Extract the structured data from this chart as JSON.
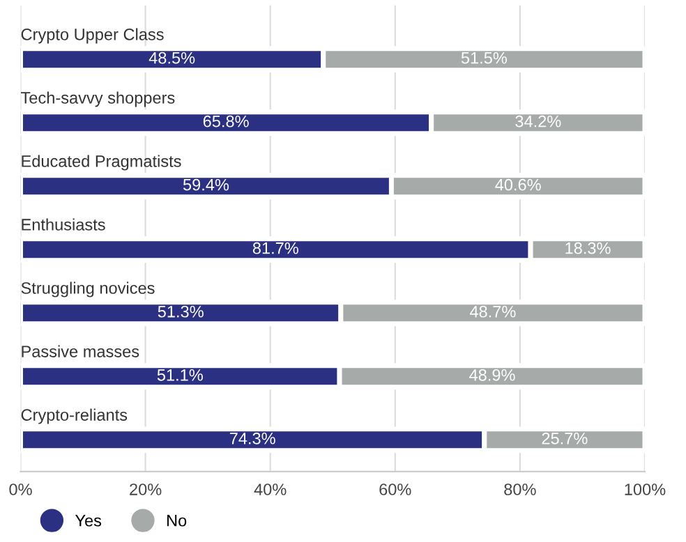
{
  "chart_data": {
    "type": "bar",
    "orientation": "horizontal",
    "stacked": true,
    "categories": [
      "Crypto Upper Class",
      "Tech-savvy shoppers",
      "Educated Pragmatists",
      "Enthusiasts",
      "Struggling novices",
      "Passive masses",
      "Crypto-reliants"
    ],
    "series": [
      {
        "name": "Yes",
        "color": "#2b3082",
        "values": [
          48.5,
          65.8,
          59.4,
          81.7,
          51.3,
          51.1,
          74.3
        ],
        "value_labels": [
          "48.5%",
          "65.8%",
          "59.4%",
          "81.7%",
          "51.3%",
          "51.1%",
          "74.3%"
        ]
      },
      {
        "name": "No",
        "color": "#a6aaa8",
        "values": [
          51.5,
          34.2,
          40.6,
          18.3,
          48.7,
          48.9,
          25.7
        ],
        "value_labels": [
          "51.5%",
          "34.2%",
          "40.6%",
          "18.3%",
          "48.7%",
          "48.9%",
          "25.7%"
        ]
      }
    ],
    "xlim": [
      0,
      100
    ],
    "xticks": [
      {
        "value": 0,
        "label": "0%"
      },
      {
        "value": 20,
        "label": "20%"
      },
      {
        "value": 40,
        "label": "40%"
      },
      {
        "value": 60,
        "label": "60%"
      },
      {
        "value": 80,
        "label": "80%"
      },
      {
        "value": 100,
        "label": "100%"
      }
    ],
    "grid": "x",
    "legend": "bottom left"
  }
}
